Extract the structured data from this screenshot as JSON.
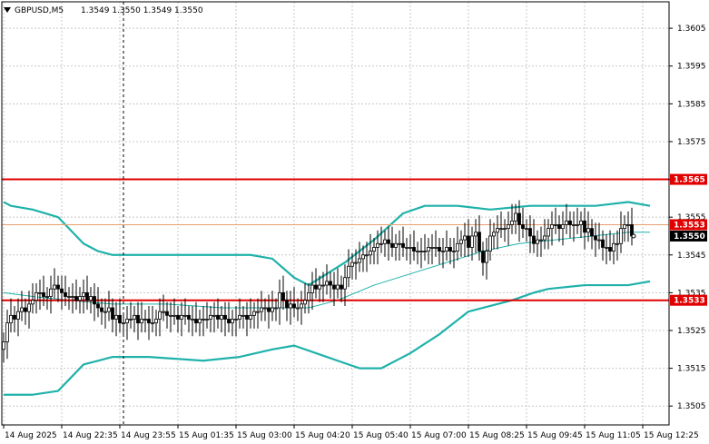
{
  "header": {
    "symbol": "GBPUSD,M5",
    "quote": "1.3549 1.3550 1.3549 1.3550",
    "menu_icon": "triangle-down-icon"
  },
  "colors": {
    "background": "#ffffff",
    "frame": "#000000",
    "grid": "#c8c8c8",
    "candle": "#000000",
    "bollinger": "#20b2aa",
    "level_line": "#e00000",
    "bid_line": "#e8a070",
    "price_tag_red": "#e00000",
    "price_tag_black": "#000000"
  },
  "chart_data": {
    "type": "candlestick",
    "symbol": "GBPUSD",
    "timeframe": "M5",
    "ylim": [
      1.35,
      1.3612
    ],
    "grid": true,
    "y_ticks": [
      "1.3605",
      "1.3595",
      "1.3585",
      "1.3575",
      "1.3565",
      "1.3555",
      "1.3545",
      "1.3535",
      "1.3525",
      "1.3515",
      "1.3505"
    ],
    "x_ticks": [
      {
        "label": "14 Aug 2025",
        "bar": 0
      },
      {
        "label": "14 Aug 22:35",
        "bar": 16
      },
      {
        "label": "14 Aug 23:55",
        "bar": 32
      },
      {
        "label": "15 Aug 01:35",
        "bar": 48
      },
      {
        "label": "15 Aug 03:00",
        "bar": 64
      },
      {
        "label": "15 Aug 04:20",
        "bar": 80
      },
      {
        "label": "15 Aug 05:40",
        "bar": 96
      },
      {
        "label": "15 Aug 07:00",
        "bar": 112
      },
      {
        "label": "15 Aug 08:25",
        "bar": 128
      },
      {
        "label": "15 Aug 09:45",
        "bar": 144
      },
      {
        "label": "15 Aug 11:05",
        "bar": 160
      },
      {
        "label": "15 Aug 12:25",
        "bar": 176
      }
    ],
    "vertical_marker_bar": 33,
    "horizontal_levels": [
      {
        "price": 1.3565,
        "label": "1.3565",
        "style": "red"
      },
      {
        "price": 1.3553,
        "label": "1.3553",
        "style": "red"
      },
      {
        "price": 1.355,
        "label": "1.3550",
        "style": "black"
      },
      {
        "price": 1.3533,
        "label": "1.3533",
        "style": "red"
      }
    ],
    "bid_line_price": 1.3553,
    "closes": [
      1.3522,
      1.3527,
      1.3529,
      1.3528,
      1.353,
      1.3531,
      1.353,
      1.3532,
      1.3533,
      1.3535,
      1.3535,
      1.3534,
      1.3534,
      1.3536,
      1.3537,
      1.3536,
      1.3535,
      1.3534,
      1.3534,
      1.3534,
      1.3533,
      1.3534,
      1.3535,
      1.3533,
      1.3534,
      1.3532,
      1.3531,
      1.353,
      1.353,
      1.3531,
      1.3528,
      1.3529,
      1.3527,
      1.3527,
      1.3528,
      1.3528,
      1.3529,
      1.3527,
      1.3528,
      1.3528,
      1.3527,
      1.3527,
      1.3528,
      1.353,
      1.353,
      1.3529,
      1.3529,
      1.3529,
      1.3528,
      1.3529,
      1.3529,
      1.3528,
      1.3528,
      1.3527,
      1.3528,
      1.3528,
      1.3528,
      1.3529,
      1.3529,
      1.3528,
      1.3529,
      1.3528,
      1.3527,
      1.3528,
      1.3528,
      1.3529,
      1.3529,
      1.3528,
      1.3529,
      1.353,
      1.353,
      1.3531,
      1.3531,
      1.353,
      1.3531,
      1.3531,
      1.3535,
      1.3533,
      1.3531,
      1.3532,
      1.3531,
      1.3531,
      1.3532,
      1.3533,
      1.3535,
      1.3537,
      1.3536,
      1.3537,
      1.3537,
      1.3538,
      1.3537,
      1.3536,
      1.3537,
      1.3536,
      1.3539,
      1.3542,
      1.3543,
      1.3543,
      1.3544,
      1.3545,
      1.3545,
      1.3546,
      1.3547,
      1.3548,
      1.3548,
      1.3549,
      1.3548,
      1.3547,
      1.3548,
      1.3548,
      1.3547,
      1.3547,
      1.3547,
      1.3546,
      1.3546,
      1.3546,
      1.3546,
      1.3547,
      1.3547,
      1.3547,
      1.3546,
      1.3546,
      1.3547,
      1.3546,
      1.3546,
      1.3548,
      1.3549,
      1.355,
      1.3547,
      1.355,
      1.3551,
      1.3546,
      1.3543,
      1.3546,
      1.355,
      1.3551,
      1.3552,
      1.3552,
      1.3552,
      1.3553,
      1.3554,
      1.3556,
      1.3553,
      1.3552,
      1.3552,
      1.355,
      1.3548,
      1.3549,
      1.3549,
      1.355,
      1.3552,
      1.3553,
      1.3553,
      1.3552,
      1.3553,
      1.3554,
      1.3553,
      1.3553,
      1.3553,
      1.3554,
      1.3551,
      1.3552,
      1.355,
      1.3549,
      1.3549,
      1.3547,
      1.3547,
      1.3546,
      1.3548,
      1.3548,
      1.3552,
      1.3553,
      1.3553,
      1.355
    ],
    "bollinger": {
      "upper": [
        [
          0,
          1.3559
        ],
        [
          2,
          1.3558
        ],
        [
          8,
          1.3557
        ],
        [
          15,
          1.3555
        ],
        [
          22,
          1.3548
        ],
        [
          26,
          1.3546
        ],
        [
          30,
          1.3545
        ],
        [
          40,
          1.3545
        ],
        [
          55,
          1.3545
        ],
        [
          68,
          1.3545
        ],
        [
          74,
          1.3544
        ],
        [
          80,
          1.3539
        ],
        [
          84,
          1.3537
        ],
        [
          94,
          1.3543
        ],
        [
          102,
          1.3549
        ],
        [
          110,
          1.3556
        ],
        [
          116,
          1.3558
        ],
        [
          125,
          1.3558
        ],
        [
          134,
          1.3557
        ],
        [
          145,
          1.3558
        ],
        [
          155,
          1.3558
        ],
        [
          163,
          1.3558
        ],
        [
          172,
          1.3559
        ],
        [
          178,
          1.3558
        ]
      ],
      "middle": [
        [
          0,
          1.3535
        ],
        [
          8,
          1.3534
        ],
        [
          18,
          1.3533
        ],
        [
          30,
          1.3532
        ],
        [
          45,
          1.3532
        ],
        [
          60,
          1.3531
        ],
        [
          74,
          1.3531
        ],
        [
          84,
          1.3531
        ],
        [
          92,
          1.3533
        ],
        [
          102,
          1.3537
        ],
        [
          112,
          1.354
        ],
        [
          122,
          1.3543
        ],
        [
          132,
          1.3546
        ],
        [
          142,
          1.3548
        ],
        [
          152,
          1.3549
        ],
        [
          162,
          1.355
        ],
        [
          172,
          1.3551
        ],
        [
          178,
          1.3551
        ]
      ],
      "lower": [
        [
          0,
          1.3508
        ],
        [
          8,
          1.3508
        ],
        [
          15,
          1.3509
        ],
        [
          22,
          1.3516
        ],
        [
          26,
          1.3517
        ],
        [
          30,
          1.3518
        ],
        [
          40,
          1.3518
        ],
        [
          55,
          1.3517
        ],
        [
          65,
          1.3518
        ],
        [
          74,
          1.352
        ],
        [
          80,
          1.3521
        ],
        [
          86,
          1.3519
        ],
        [
          98,
          1.3515
        ],
        [
          104,
          1.3515
        ],
        [
          112,
          1.3519
        ],
        [
          120,
          1.3524
        ],
        [
          128,
          1.353
        ],
        [
          140,
          1.3533
        ],
        [
          146,
          1.3535
        ],
        [
          150,
          1.3536
        ],
        [
          160,
          1.3537
        ],
        [
          172,
          1.3537
        ],
        [
          178,
          1.3538
        ]
      ]
    }
  }
}
